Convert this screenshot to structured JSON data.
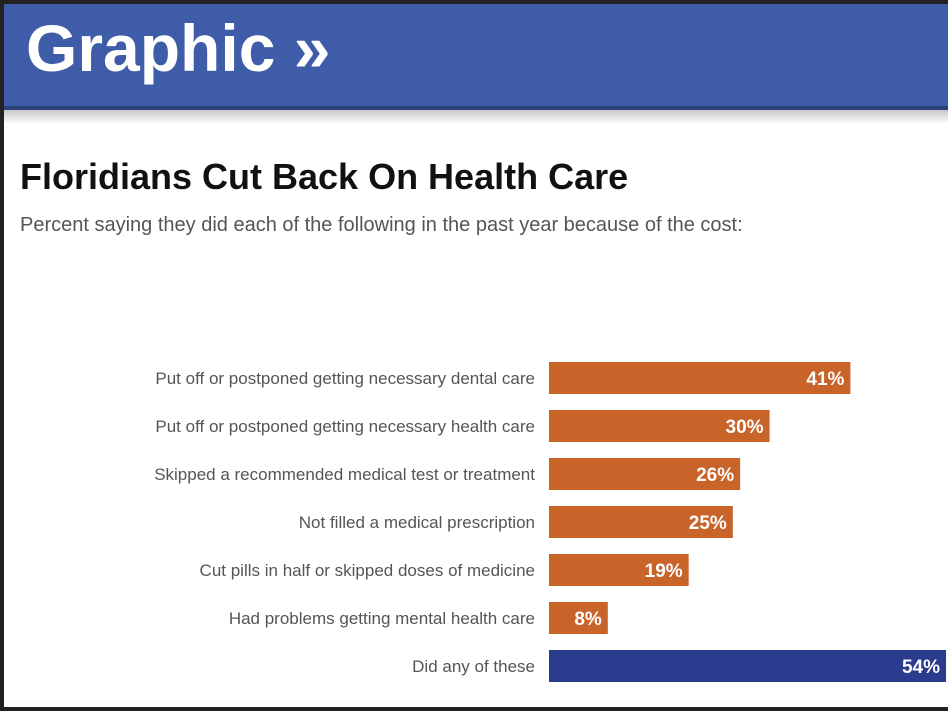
{
  "header": {
    "banner_label": "Graphic »"
  },
  "chart_data": {
    "type": "bar",
    "orientation": "horizontal",
    "title": "Floridians Cut Back On Health Care",
    "subtitle": "Percent saying they did each of the following in the past year because of the cost:",
    "categories": [
      "Put off or postponed getting necessary dental care",
      "Put off or postponed getting necessary health care",
      "Skipped a recommended medical test or treatment",
      "Not filled a medical prescription",
      "Cut pills in half or skipped doses of medicine",
      "Had problems getting mental health care",
      "Did any of these"
    ],
    "values": [
      41,
      30,
      26,
      25,
      19,
      8,
      54
    ],
    "data_labels": [
      "41%",
      "30%",
      "26%",
      "25%",
      "19%",
      "8%",
      "54%"
    ],
    "bar_colors": [
      "#c8632a",
      "#c8632a",
      "#c8632a",
      "#c8632a",
      "#c8632a",
      "#c8632a",
      "#2b3c8f"
    ],
    "xlim": [
      0,
      54
    ],
    "grid": false
  }
}
